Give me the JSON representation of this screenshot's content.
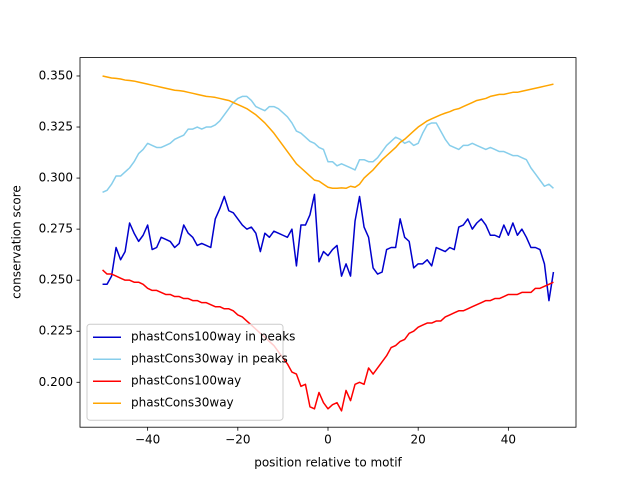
{
  "chart_data": {
    "type": "line",
    "xlabel": "position relative to motif",
    "ylabel": "conservation score",
    "x": [
      -50,
      -49,
      -48,
      -47,
      -46,
      -45,
      -44,
      -43,
      -42,
      -41,
      -40,
      -39,
      -38,
      -37,
      -36,
      -35,
      -34,
      -33,
      -32,
      -31,
      -30,
      -29,
      -28,
      -27,
      -26,
      -25,
      -24,
      -23,
      -22,
      -21,
      -20,
      -19,
      -18,
      -17,
      -16,
      -15,
      -14,
      -13,
      -12,
      -11,
      -10,
      -9,
      -8,
      -7,
      -6,
      -5,
      -4,
      -3,
      -2,
      -1,
      0,
      1,
      2,
      3,
      4,
      5,
      6,
      7,
      8,
      9,
      10,
      11,
      12,
      13,
      14,
      15,
      16,
      17,
      18,
      19,
      20,
      21,
      22,
      23,
      24,
      25,
      26,
      27,
      28,
      29,
      30,
      31,
      32,
      33,
      34,
      35,
      36,
      37,
      38,
      39,
      40,
      41,
      42,
      43,
      44,
      45,
      46,
      47,
      48,
      49,
      50
    ],
    "series": [
      {
        "name": "phastCons100way in peaks",
        "color": "#0000cd",
        "values": [
          0.248,
          0.248,
          0.252,
          0.266,
          0.26,
          0.264,
          0.278,
          0.273,
          0.269,
          0.272,
          0.277,
          0.265,
          0.266,
          0.271,
          0.27,
          0.269,
          0.266,
          0.268,
          0.277,
          0.273,
          0.271,
          0.267,
          0.268,
          0.267,
          0.266,
          0.28,
          0.285,
          0.291,
          0.284,
          0.283,
          0.28,
          0.277,
          0.275,
          0.276,
          0.273,
          0.264,
          0.273,
          0.271,
          0.274,
          0.273,
          0.272,
          0.271,
          0.275,
          0.257,
          0.277,
          0.277,
          0.282,
          0.292,
          0.259,
          0.264,
          0.262,
          0.265,
          0.267,
          0.252,
          0.258,
          0.252,
          0.279,
          0.291,
          0.276,
          0.271,
          0.256,
          0.253,
          0.254,
          0.265,
          0.266,
          0.266,
          0.28,
          0.271,
          0.269,
          0.256,
          0.258,
          0.258,
          0.26,
          0.257,
          0.266,
          0.265,
          0.264,
          0.266,
          0.265,
          0.276,
          0.277,
          0.28,
          0.275,
          0.278,
          0.28,
          0.277,
          0.272,
          0.272,
          0.271,
          0.277,
          0.272,
          0.278,
          0.272,
          0.275,
          0.271,
          0.266,
          0.266,
          0.265,
          0.258,
          0.24,
          0.254
        ]
      },
      {
        "name": "phastCons30way in peaks",
        "color": "#87ceeb",
        "values": [
          0.293,
          0.294,
          0.297,
          0.301,
          0.301,
          0.303,
          0.305,
          0.308,
          0.312,
          0.314,
          0.317,
          0.316,
          0.315,
          0.315,
          0.316,
          0.317,
          0.319,
          0.32,
          0.321,
          0.324,
          0.324,
          0.325,
          0.324,
          0.325,
          0.325,
          0.326,
          0.328,
          0.331,
          0.334,
          0.337,
          0.339,
          0.34,
          0.34,
          0.338,
          0.335,
          0.334,
          0.333,
          0.335,
          0.335,
          0.334,
          0.332,
          0.33,
          0.327,
          0.323,
          0.322,
          0.32,
          0.318,
          0.317,
          0.315,
          0.314,
          0.308,
          0.308,
          0.306,
          0.307,
          0.306,
          0.305,
          0.304,
          0.309,
          0.309,
          0.308,
          0.308,
          0.31,
          0.313,
          0.316,
          0.318,
          0.32,
          0.319,
          0.317,
          0.318,
          0.316,
          0.317,
          0.322,
          0.326,
          0.327,
          0.327,
          0.323,
          0.319,
          0.316,
          0.315,
          0.314,
          0.316,
          0.316,
          0.317,
          0.316,
          0.315,
          0.314,
          0.315,
          0.314,
          0.313,
          0.313,
          0.312,
          0.311,
          0.311,
          0.31,
          0.309,
          0.305,
          0.302,
          0.299,
          0.296,
          0.297,
          0.295
        ]
      },
      {
        "name": "phastCons100way",
        "color": "#ff0000",
        "values": [
          0.255,
          0.253,
          0.253,
          0.252,
          0.251,
          0.25,
          0.25,
          0.249,
          0.249,
          0.248,
          0.246,
          0.245,
          0.245,
          0.244,
          0.243,
          0.243,
          0.242,
          0.242,
          0.241,
          0.241,
          0.24,
          0.24,
          0.239,
          0.239,
          0.238,
          0.237,
          0.237,
          0.236,
          0.236,
          0.235,
          0.233,
          0.232,
          0.23,
          0.228,
          0.226,
          0.224,
          0.222,
          0.22,
          0.218,
          0.215,
          0.212,
          0.209,
          0.205,
          0.204,
          0.198,
          0.199,
          0.188,
          0.187,
          0.195,
          0.19,
          0.187,
          0.189,
          0.19,
          0.186,
          0.196,
          0.191,
          0.199,
          0.2,
          0.199,
          0.207,
          0.204,
          0.207,
          0.21,
          0.213,
          0.217,
          0.218,
          0.22,
          0.221,
          0.224,
          0.225,
          0.227,
          0.228,
          0.229,
          0.229,
          0.23,
          0.23,
          0.232,
          0.233,
          0.234,
          0.235,
          0.235,
          0.236,
          0.237,
          0.238,
          0.239,
          0.24,
          0.24,
          0.241,
          0.241,
          0.242,
          0.243,
          0.243,
          0.243,
          0.244,
          0.244,
          0.244,
          0.246,
          0.246,
          0.247,
          0.248,
          0.249
        ]
      },
      {
        "name": "phastCons30way",
        "color": "#ffa500",
        "values": [
          0.35,
          0.3495,
          0.349,
          0.3488,
          0.3485,
          0.348,
          0.3478,
          0.3475,
          0.347,
          0.3465,
          0.346,
          0.3455,
          0.345,
          0.3445,
          0.344,
          0.3435,
          0.343,
          0.3428,
          0.3425,
          0.342,
          0.3415,
          0.341,
          0.3405,
          0.34,
          0.3398,
          0.3395,
          0.339,
          0.3385,
          0.338,
          0.337,
          0.336,
          0.335,
          0.334,
          0.3325,
          0.331,
          0.329,
          0.327,
          0.3245,
          0.322,
          0.319,
          0.316,
          0.313,
          0.31,
          0.307,
          0.305,
          0.303,
          0.301,
          0.299,
          0.2985,
          0.297,
          0.2955,
          0.295,
          0.295,
          0.2952,
          0.295,
          0.296,
          0.2955,
          0.297,
          0.3,
          0.302,
          0.304,
          0.3065,
          0.309,
          0.311,
          0.313,
          0.315,
          0.3175,
          0.319,
          0.321,
          0.323,
          0.325,
          0.3265,
          0.328,
          0.329,
          0.33,
          0.331,
          0.3318,
          0.3325,
          0.3335,
          0.334,
          0.335,
          0.336,
          0.337,
          0.338,
          0.3385,
          0.339,
          0.34,
          0.3405,
          0.341,
          0.341,
          0.3415,
          0.342,
          0.342,
          0.3425,
          0.343,
          0.3435,
          0.344,
          0.3445,
          0.345,
          0.3455,
          0.346
        ]
      }
    ],
    "xlim": [
      -55,
      55
    ],
    "xticks": [
      {
        "value": -40,
        "label": "−40"
      },
      {
        "value": -20,
        "label": "−20"
      },
      0,
      20,
      40
    ],
    "ylim": [
      0.178,
      0.359
    ],
    "yticks": [
      {
        "value": 0.2,
        "label": "0.200"
      },
      0.225,
      {
        "value": 0.25,
        "label": "0.250"
      },
      0.275,
      {
        "value": 0.3,
        "label": "0.300"
      },
      0.325,
      {
        "value": 0.35,
        "label": "0.350"
      }
    ],
    "legend": "lower left"
  }
}
